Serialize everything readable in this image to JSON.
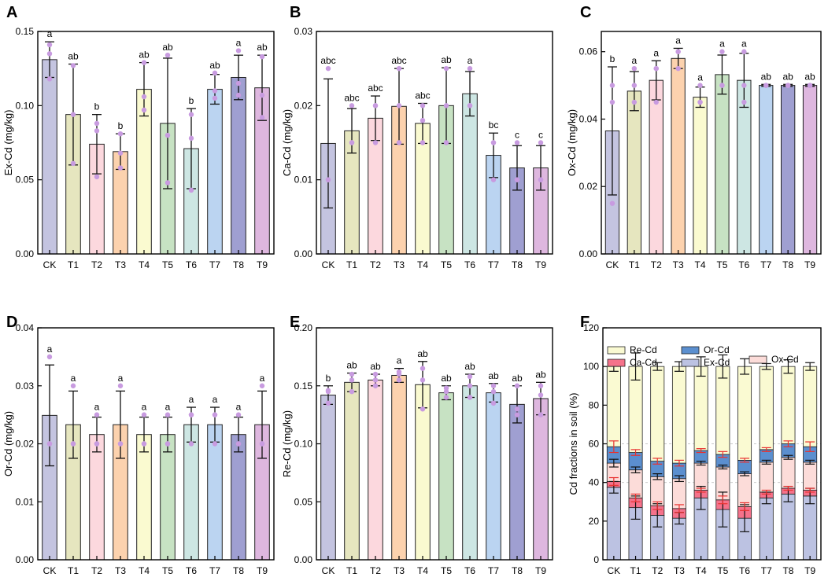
{
  "palette": [
    "#c4c4e0",
    "#e6e6bf",
    "#fcd8de",
    "#fcd2ae",
    "#fafad0",
    "#c7e2c3",
    "#cde6e3",
    "#bbd4f1",
    "#9f9fd1",
    "#deb7df"
  ],
  "errorbar_color": "#111111",
  "dot_color": "#c89be0",
  "chart_data": [
    {
      "panel": "A",
      "type": "bar",
      "ylabel": "Ex-Cd (mg/kg)",
      "ylim": [
        0,
        0.15
      ],
      "yticks": [
        0.0,
        0.05,
        0.1,
        0.15
      ],
      "ytick_labels": [
        "0.00",
        "0.05",
        "0.10",
        "0.15"
      ],
      "categories": [
        "CK",
        "T1",
        "T2",
        "T3",
        "T4",
        "T5",
        "T6",
        "T7",
        "T8",
        "T9"
      ],
      "values": [
        0.131,
        0.094,
        0.074,
        0.069,
        0.111,
        0.088,
        0.071,
        0.111,
        0.119,
        0.112
      ],
      "errors": [
        0.012,
        0.034,
        0.02,
        0.012,
        0.018,
        0.044,
        0.027,
        0.01,
        0.015,
        0.022
      ],
      "letters": [
        "a",
        "ab",
        "b",
        "b",
        "ab",
        "ab",
        "b",
        "ab",
        "a",
        "ab"
      ],
      "points": [
        [
          0.118,
          0.135,
          0.141
        ],
        [
          0.061,
          0.094,
          0.127
        ],
        [
          0.052,
          0.083,
          0.088
        ],
        [
          0.058,
          0.068,
          0.081
        ],
        [
          0.097,
          0.106,
          0.129
        ],
        [
          0.048,
          0.08,
          0.134
        ],
        [
          0.043,
          0.078,
          0.094
        ],
        [
          0.105,
          0.11,
          0.122
        ],
        [
          0.107,
          0.115,
          0.137
        ],
        [
          0.092,
          0.107,
          0.133
        ]
      ]
    },
    {
      "panel": "B",
      "type": "bar",
      "ylabel": "Ca-Cd (mg/kg)",
      "ylim": [
        0,
        0.03
      ],
      "yticks": [
        0.0,
        0.01,
        0.02,
        0.03
      ],
      "ytick_labels": [
        "0.00",
        "0.01",
        "0.02",
        "0.03"
      ],
      "categories": [
        "CK",
        "T1",
        "T2",
        "T3",
        "T4",
        "T5",
        "T6",
        "T7",
        "T8",
        "T9"
      ],
      "values": [
        0.0149,
        0.0166,
        0.0183,
        0.0199,
        0.0176,
        0.02,
        0.0216,
        0.0133,
        0.0116,
        0.0116
      ],
      "errors": [
        0.0087,
        0.003,
        0.003,
        0.0051,
        0.0027,
        0.0051,
        0.003,
        0.003,
        0.003,
        0.003
      ],
      "letters": [
        "abc",
        "abc",
        "abc",
        "abc",
        "abc",
        "ab",
        "a",
        "bc",
        "c",
        "c"
      ],
      "points": [
        [
          0.01,
          0.01,
          0.025
        ],
        [
          0.015,
          0.015,
          0.02
        ],
        [
          0.015,
          0.02,
          0.02
        ],
        [
          0.015,
          0.02,
          0.025
        ],
        [
          0.015,
          0.018,
          0.02
        ],
        [
          0.015,
          0.02,
          0.025
        ],
        [
          0.02,
          0.02,
          0.025
        ],
        [
          0.01,
          0.015,
          0.015
        ],
        [
          0.01,
          0.01,
          0.015
        ],
        [
          0.01,
          0.01,
          0.015
        ]
      ]
    },
    {
      "panel": "C",
      "type": "bar",
      "ylabel": "Ox-Cd (mg/kg)",
      "ylim": [
        0,
        0.066
      ],
      "yticks": [
        0.0,
        0.02,
        0.04,
        0.06
      ],
      "ytick_labels": [
        "0.00",
        "0.02",
        "0.04",
        "0.06"
      ],
      "categories": [
        "CK",
        "T1",
        "T2",
        "T3",
        "T4",
        "T5",
        "T6",
        "T7",
        "T8",
        "T9"
      ],
      "values": [
        0.0365,
        0.0483,
        0.0515,
        0.058,
        0.0465,
        0.0532,
        0.0515,
        0.05,
        0.05,
        0.05
      ],
      "errors": [
        0.019,
        0.0058,
        0.0058,
        0.003,
        0.003,
        0.0058,
        0.008,
        0.0003,
        0.0003,
        0.0003
      ],
      "letters": [
        "b",
        "a",
        "a",
        "a",
        "a",
        "a",
        "a",
        "ab",
        "ab",
        "ab"
      ],
      "points": [
        [
          0.015,
          0.045,
          0.05
        ],
        [
          0.045,
          0.05,
          0.055
        ],
        [
          0.045,
          0.055,
          0.055
        ],
        [
          0.055,
          0.06,
          0.06
        ],
        [
          0.045,
          0.045,
          0.05
        ],
        [
          0.05,
          0.05,
          0.06
        ],
        [
          0.045,
          0.05,
          0.06
        ],
        [
          0.05,
          0.05,
          0.05
        ],
        [
          0.05,
          0.05,
          0.05
        ],
        [
          0.05,
          0.05,
          0.05
        ]
      ]
    },
    {
      "panel": "D",
      "type": "bar",
      "ylabel": "Or-Cd (mg/kg)",
      "ylim": [
        0,
        0.04
      ],
      "yticks": [
        0.0,
        0.01,
        0.02,
        0.03,
        0.04
      ],
      "ytick_labels": [
        "0.00",
        "0.01",
        "0.02",
        "0.03",
        "0.04"
      ],
      "categories": [
        "CK",
        "T1",
        "T2",
        "T3",
        "T4",
        "T5",
        "T6",
        "T7",
        "T8",
        "T9"
      ],
      "values": [
        0.0249,
        0.0233,
        0.0216,
        0.0233,
        0.0216,
        0.0216,
        0.0233,
        0.0233,
        0.0216,
        0.0233
      ],
      "errors": [
        0.0087,
        0.0058,
        0.003,
        0.0058,
        0.003,
        0.003,
        0.003,
        0.003,
        0.003,
        0.0058
      ],
      "letters": [
        "a",
        "a",
        "a",
        "a",
        "a",
        "a",
        "a",
        "a",
        "a",
        "a"
      ],
      "points": [
        [
          0.02,
          0.02,
          0.035
        ],
        [
          0.02,
          0.02,
          0.03
        ],
        [
          0.02,
          0.02,
          0.025
        ],
        [
          0.02,
          0.02,
          0.03
        ],
        [
          0.02,
          0.02,
          0.025
        ],
        [
          0.02,
          0.02,
          0.025
        ],
        [
          0.02,
          0.025,
          0.025
        ],
        [
          0.02,
          0.025,
          0.025
        ],
        [
          0.02,
          0.02,
          0.025
        ],
        [
          0.02,
          0.02,
          0.03
        ]
      ]
    },
    {
      "panel": "E",
      "type": "bar",
      "ylabel": "Re-Cd (mg/kg)",
      "ylim": [
        0,
        0.2
      ],
      "yticks": [
        0.0,
        0.05,
        0.1,
        0.15,
        0.2
      ],
      "ytick_labels": [
        "0.00",
        "0.05",
        "0.10",
        "0.15",
        "0.20"
      ],
      "categories": [
        "CK",
        "T1",
        "T2",
        "T3",
        "T4",
        "T5",
        "T6",
        "T7",
        "T8",
        "T9"
      ],
      "values": [
        0.142,
        0.153,
        0.155,
        0.159,
        0.151,
        0.144,
        0.15,
        0.144,
        0.134,
        0.139
      ],
      "errors": [
        0.008,
        0.008,
        0.005,
        0.006,
        0.02,
        0.006,
        0.01,
        0.008,
        0.016,
        0.014
      ],
      "letters": [
        "b",
        "ab",
        "ab",
        "a",
        "ab",
        "ab",
        "ab",
        "ab",
        "ab",
        "ab"
      ],
      "points": [
        [
          0.135,
          0.145,
          0.146
        ],
        [
          0.145,
          0.155,
          0.16
        ],
        [
          0.15,
          0.155,
          0.16
        ],
        [
          0.155,
          0.16,
          0.162
        ],
        [
          0.13,
          0.155,
          0.165
        ],
        [
          0.14,
          0.145,
          0.148
        ],
        [
          0.14,
          0.15,
          0.158
        ],
        [
          0.135,
          0.145,
          0.15
        ],
        [
          0.125,
          0.13,
          0.15
        ],
        [
          0.125,
          0.142,
          0.15
        ]
      ]
    },
    {
      "panel": "F",
      "type": "stacked-bar",
      "ylabel": "Cd fractions in soil (%)",
      "ylim": [
        0,
        120
      ],
      "yticks": [
        0,
        20,
        40,
        60,
        80,
        100,
        120
      ],
      "ytick_labels": [
        "0",
        "20",
        "40",
        "60",
        "80",
        "100",
        "120"
      ],
      "categories": [
        "CK",
        "T1",
        "T2",
        "T3",
        "T4",
        "T5",
        "T6",
        "T7",
        "T8",
        "T9"
      ],
      "legend": [
        {
          "name": "Re-Cd",
          "color": "#fafad2"
        },
        {
          "name": "Or-Cd",
          "color": "#5b8fcf"
        },
        {
          "name": "Ox-Cd",
          "color": "#fcdcd9"
        },
        {
          "name": "Ca-Cd",
          "color": "#f5728b"
        },
        {
          "name": "Ex-Cd",
          "color": "#bcc2e2"
        }
      ],
      "series": [
        {
          "name": "Ex-Cd",
          "values": [
            37.5,
            27,
            23,
            21.5,
            32,
            26,
            21.5,
            32,
            34,
            33
          ],
          "errors": [
            3,
            6,
            6,
            3,
            6,
            9,
            7,
            3,
            4,
            4
          ]
        },
        {
          "name": "Ca-Cd",
          "values": [
            3,
            5,
            5,
            5,
            4,
            5,
            6,
            3,
            3,
            3
          ],
          "errors": [
            2,
            2,
            2,
            2,
            1,
            2,
            2,
            1,
            1,
            1
          ]
        },
        {
          "name": "Ox-Cd",
          "values": [
            9.5,
            14.5,
            15,
            15.5,
            14,
            17,
            17,
            15.5,
            16,
            14.5
          ],
          "errors": [
            2,
            1.5,
            1.5,
            1.5,
            1,
            1,
            1,
            1,
            1,
            1
          ]
        },
        {
          "name": "Or-Cd",
          "values": [
            8.5,
            9,
            8,
            8,
            6.5,
            6.5,
            7,
            6.5,
            7,
            8
          ],
          "errors": [
            3,
            1.5,
            1.5,
            1.5,
            1,
            1.5,
            1,
            1,
            1.5,
            2.5
          ]
        },
        {
          "name": "Re-Cd",
          "values": [
            41.5,
            44.5,
            49,
            50,
            43.5,
            45.5,
            48.5,
            43,
            40,
            41.5
          ],
          "errors": [
            2.5,
            7,
            2,
            2.5,
            5,
            6,
            4,
            1.5,
            3.5,
            2
          ]
        }
      ]
    }
  ]
}
